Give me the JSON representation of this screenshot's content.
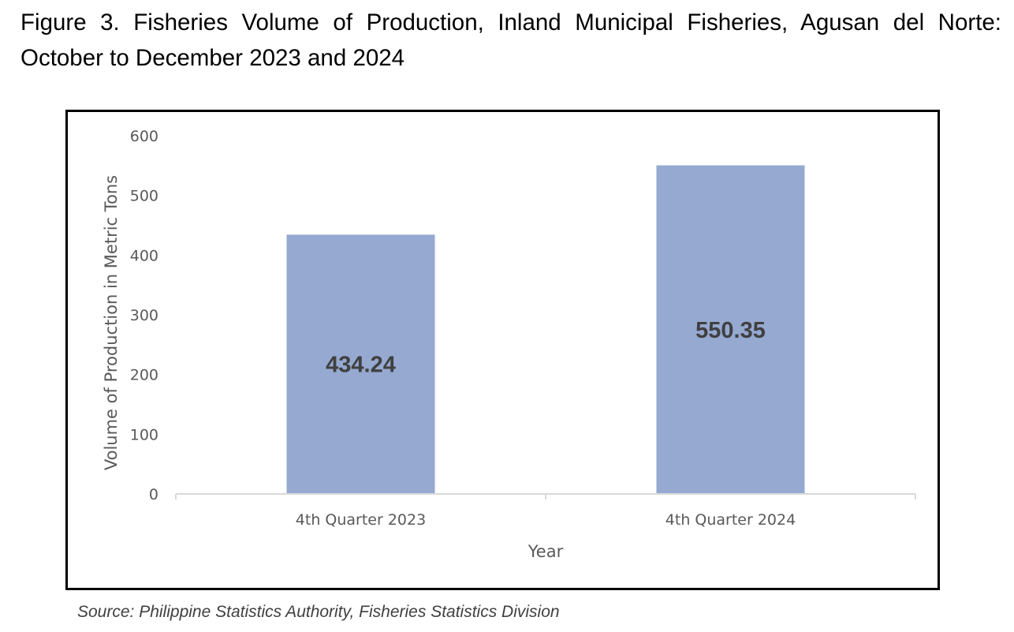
{
  "figure": {
    "title": "Figure 3. Fisheries Volume of Production, Inland Municipal Fisheries, Agusan del Norte: October to December 2023 and 2024",
    "source": "Source: Philippine Statistics Authority, Fisheries Statistics Division"
  },
  "chart_data": {
    "type": "bar",
    "title": "",
    "xlabel": "Year",
    "ylabel": "Volume of Production in Metric Tons",
    "categories": [
      "4th Quarter 2023",
      "4th Quarter 2024"
    ],
    "values": [
      434.24,
      550.35
    ],
    "data_labels": [
      "434.24",
      "550.35"
    ],
    "ylim": [
      0,
      600
    ],
    "yticks": [
      0,
      100,
      200,
      300,
      400,
      500,
      600
    ],
    "grid": false,
    "legend": "none",
    "bar_color": "#95A9D1",
    "frame_color": "#000000",
    "axis_color": "#D9D9D9"
  }
}
